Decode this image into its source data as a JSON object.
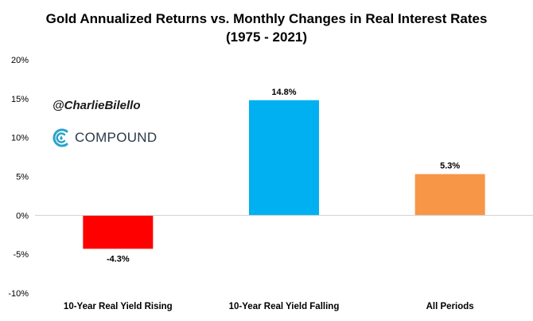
{
  "chart_data": {
    "type": "bar",
    "title": "Gold Annualized Returns vs. Monthly Changes in Real Interest Rates",
    "subtitle": "(1975 - 2021)",
    "categories": [
      "10-Year Real Yield Rising",
      "10-Year Real Yield Falling",
      "All Periods"
    ],
    "values": [
      -4.3,
      14.8,
      5.3
    ],
    "data_labels": [
      "-4.3%",
      "14.8%",
      "5.3%"
    ],
    "colors": [
      "#ff0000",
      "#00b0f0",
      "#f79646"
    ],
    "ylim": [
      -10,
      20
    ],
    "yticks": [
      20,
      15,
      10,
      5,
      0,
      -5,
      -10
    ],
    "ytick_labels": [
      "20%",
      "15%",
      "10%",
      "5%",
      "0%",
      "-5%",
      "-10%"
    ],
    "xlabel": "",
    "ylabel": "",
    "grid": false,
    "legend": "none"
  },
  "watermark": {
    "handle": "@CharlieBilello",
    "brand": "COMPOUND",
    "brand_color": "#2aa3c9"
  }
}
